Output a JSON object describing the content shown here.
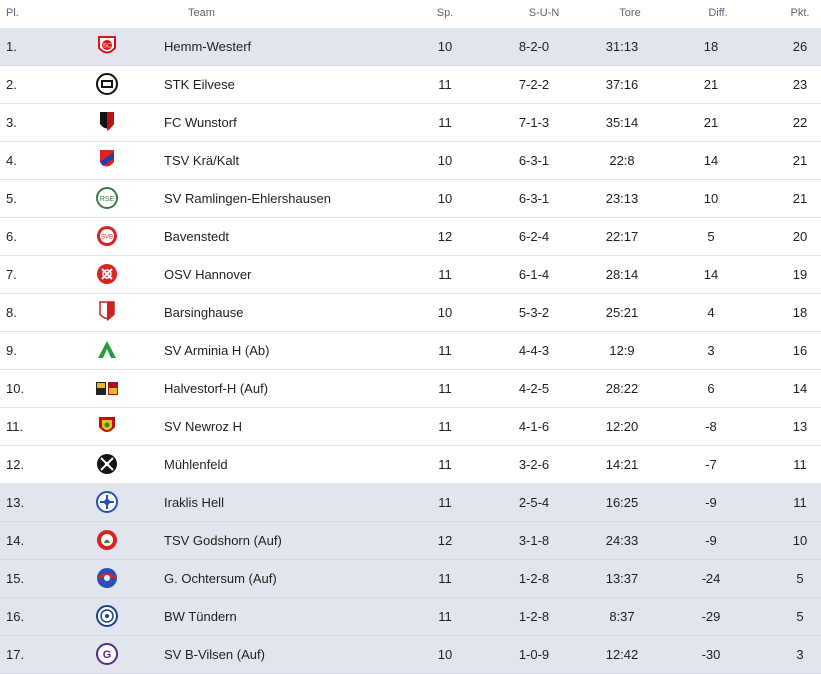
{
  "header": {
    "pos": "Pl.",
    "team": "Team",
    "sp": "Sp.",
    "sun": "S-U-N",
    "tore": "Tore",
    "diff": "Diff.",
    "pkt": "Pkt."
  },
  "rows": [
    {
      "pos": "1.",
      "team": "Hemm-Westerf",
      "sp": "10",
      "sun": "8-2-0",
      "tore": "31:13",
      "diff": "18",
      "pkt": "26",
      "logo": "crest-red-white-sc",
      "hl": true
    },
    {
      "pos": "2.",
      "team": "STK Eilvese",
      "sp": "11",
      "sun": "7-2-2",
      "tore": "37:16",
      "diff": "21",
      "pkt": "23",
      "logo": "crest-black-white",
      "hl": false
    },
    {
      "pos": "3.",
      "team": "FC Wunstorf",
      "sp": "11",
      "sun": "7-1-3",
      "tore": "35:14",
      "diff": "21",
      "pkt": "22",
      "logo": "crest-black-red",
      "hl": false
    },
    {
      "pos": "4.",
      "team": "TSV Krä/Kalt",
      "sp": "10",
      "sun": "6-3-1",
      "tore": "22:8",
      "diff": "14",
      "pkt": "21",
      "logo": "crest-red-blue-diagonal",
      "hl": false
    },
    {
      "pos": "5.",
      "team": "SV Ramlingen-Ehlershausen",
      "sp": "10",
      "sun": "6-3-1",
      "tore": "23:13",
      "diff": "10",
      "pkt": "21",
      "logo": "crest-green-white-rse",
      "hl": false
    },
    {
      "pos": "6.",
      "team": "Bavenstedt",
      "sp": "12",
      "sun": "6-2-4",
      "tore": "22:17",
      "diff": "5",
      "pkt": "20",
      "logo": "crest-red-white-svb",
      "hl": false
    },
    {
      "pos": "7.",
      "team": "OSV Hannover",
      "sp": "11",
      "sun": "6-1-4",
      "tore": "28:14",
      "diff": "14",
      "pkt": "19",
      "logo": "crest-red-circle",
      "hl": false
    },
    {
      "pos": "8.",
      "team": "Barsinghause",
      "sp": "10",
      "sun": "5-3-2",
      "tore": "25:21",
      "diff": "4",
      "pkt": "18",
      "logo": "crest-red-white-shield",
      "hl": false
    },
    {
      "pos": "9.",
      "team": "SV Arminia H (Ab)",
      "sp": "11",
      "sun": "4-4-3",
      "tore": "12:9",
      "diff": "3",
      "pkt": "16",
      "logo": "crest-green-a",
      "hl": false
    },
    {
      "pos": "10.",
      "team": "Halvestorf-H (Auf)",
      "sp": "11",
      "sun": "4-2-5",
      "tore": "28:22",
      "diff": "6",
      "pkt": "14",
      "logo": "crest-double-yellow-red",
      "hl": false
    },
    {
      "pos": "11.",
      "team": "SV Newroz H",
      "sp": "11",
      "sun": "4-1-6",
      "tore": "12:20",
      "diff": "-8",
      "pkt": "13",
      "logo": "crest-red-yellow-shield",
      "hl": false
    },
    {
      "pos": "12.",
      "team": "Mühlenfeld",
      "sp": "11",
      "sun": "3-2-6",
      "tore": "14:21",
      "diff": "-7",
      "pkt": "11",
      "logo": "crest-black-windmill",
      "hl": false
    },
    {
      "pos": "13.",
      "team": "Iraklis Hell",
      "sp": "11",
      "sun": "2-5-4",
      "tore": "16:25",
      "diff": "-9",
      "pkt": "11",
      "logo": "crest-blue-white-round",
      "hl": true
    },
    {
      "pos": "14.",
      "team": "TSV Godshorn (Auf)",
      "sp": "12",
      "sun": "3-1-8",
      "tore": "24:33",
      "diff": "-9",
      "pkt": "10",
      "logo": "crest-red-green",
      "hl": true
    },
    {
      "pos": "15.",
      "team": "G. Ochtersum (Auf)",
      "sp": "11",
      "sun": "1-2-8",
      "tore": "13:37",
      "diff": "-24",
      "pkt": "5",
      "logo": "crest-red-blue-ball",
      "hl": true
    },
    {
      "pos": "16.",
      "team": "BW Tündern",
      "sp": "11",
      "sun": "1-2-8",
      "tore": "8:37",
      "diff": "-29",
      "pkt": "5",
      "logo": "crest-blue-white-circle",
      "hl": true
    },
    {
      "pos": "17.",
      "team": "SV B-Vilsen (Auf)",
      "sp": "10",
      "sun": "1-0-9",
      "tore": "12:42",
      "diff": "-30",
      "pkt": "3",
      "logo": "crest-purple-circle",
      "hl": true
    }
  ]
}
